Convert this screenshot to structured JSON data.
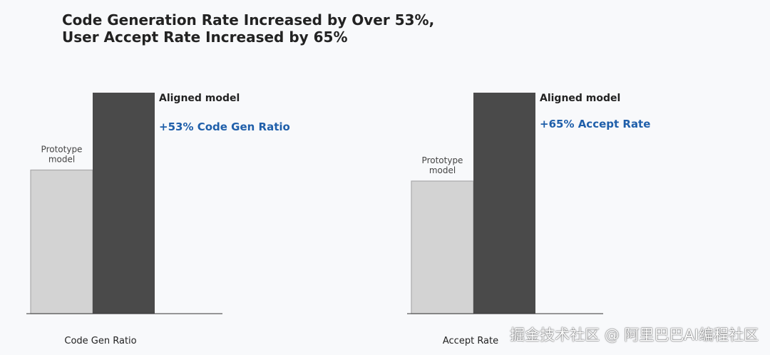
{
  "title": {
    "line1": "Code Generation Rate Increased by Over 53%,",
    "line2": "User Accept Rate Increased by 65%"
  },
  "chart_data": [
    {
      "type": "bar",
      "categories": [
        "Prototype model",
        "Aligned model"
      ],
      "values": [
        0.65,
        1.0
      ],
      "ylim": [
        0,
        1.0
      ],
      "xlabel": "Code Gen Ratio",
      "colors": [
        "#d3d3d3",
        "#4a4a4a"
      ],
      "annotation": "+53% Code Gen Ratio",
      "annotation_color": "#1f5faa",
      "grid": false
    },
    {
      "type": "bar",
      "categories": [
        "Prototype model",
        "Aligned model"
      ],
      "values": [
        0.6,
        1.0
      ],
      "ylim": [
        0,
        1.0
      ],
      "xlabel": "Accept Rate",
      "colors": [
        "#d3d3d3",
        "#4a4a4a"
      ],
      "annotation": "+65% Accept Rate",
      "annotation_color": "#1f5faa",
      "grid": false
    }
  ],
  "labels": {
    "prototype_line1": "Prototype",
    "prototype_line2": "model",
    "aligned": "Aligned model"
  },
  "watermark": "掘金技术社区 @ 阿里巴巴AI编程社区"
}
